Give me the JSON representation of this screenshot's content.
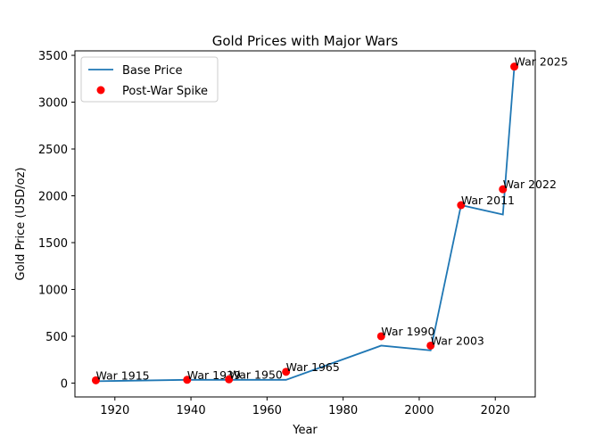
{
  "chart_data": {
    "type": "line",
    "title": "Gold Prices with Major Wars",
    "xlabel": "Year",
    "ylabel": "Gold Price (USD/oz)",
    "xlim": [
      1909.5,
      2030.5
    ],
    "ylim": [
      -148,
      3548
    ],
    "xticks": [
      1920,
      1940,
      1960,
      1980,
      2000,
      2020
    ],
    "yticks": [
      0,
      500,
      1000,
      1500,
      2000,
      2500,
      3000,
      3500
    ],
    "grid": false,
    "legend_position": "top-left",
    "series": [
      {
        "name": "Base Price",
        "kind": "line",
        "color": "#1f77b4",
        "x": [
          1915,
          1939,
          1950,
          1965,
          1990,
          2003,
          2011,
          2022,
          2025
        ],
        "y": [
          20,
          35,
          35,
          35,
          400,
          350,
          1900,
          1800,
          3380
        ]
      },
      {
        "name": "Post-War Spike",
        "kind": "scatter",
        "color": "#ff0000",
        "x": [
          1915,
          1939,
          1950,
          1965,
          1990,
          2003,
          2011,
          2022,
          2025
        ],
        "y": [
          30,
          35,
          40,
          120,
          500,
          400,
          1900,
          2070,
          3380
        ]
      }
    ],
    "annotations": [
      "War 1915",
      "War 1939",
      "War 1950",
      "War 1965",
      "War 1990",
      "War 2003",
      "War 2011",
      "War 2022",
      "War 2025"
    ]
  }
}
